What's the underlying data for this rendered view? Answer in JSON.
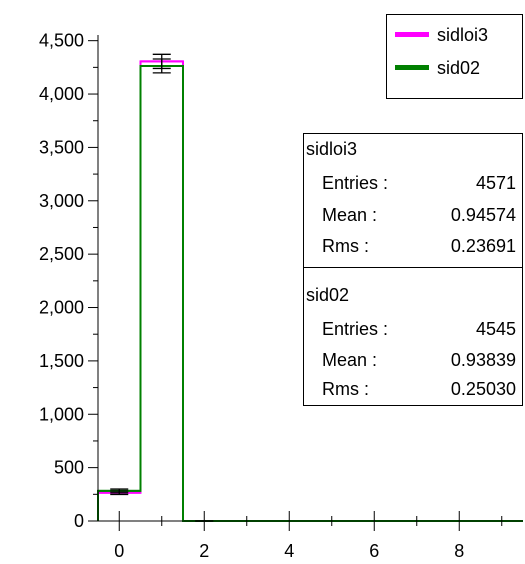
{
  "chart_data": {
    "type": "histogram",
    "bin_width": 1,
    "xlim": [
      -0.5,
      9.5
    ],
    "ylim": [
      0,
      4600
    ],
    "x_ticks": [
      0,
      2,
      4,
      6,
      8
    ],
    "y_ticks": [
      0,
      500,
      1000,
      1500,
      2000,
      2500,
      3000,
      3500,
      4000,
      4500
    ],
    "y_tick_labels": [
      "0",
      "500",
      "1,000",
      "1,500",
      "2,000",
      "2,500",
      "3,000",
      "3,500",
      "4,000",
      "4,500"
    ],
    "series": [
      {
        "name": "sidloi3",
        "color": "#ff00ff",
        "bins": [
          -0.5,
          0.5,
          1.5,
          2.5,
          9.5
        ],
        "values": [
          265,
          4306,
          0,
          0
        ],
        "errors": [
          16,
          66,
          0,
          0
        ],
        "stats": {
          "entries_label": "Entries :",
          "entries": "4571",
          "mean_label": "Mean :",
          "mean": "0.94574",
          "rms_label": "Rms :",
          "rms": "0.23691"
        }
      },
      {
        "name": "sid02",
        "color": "#008000",
        "bins": [
          -0.5,
          0.5,
          1.5,
          2.5,
          9.5
        ],
        "values": [
          282,
          4263,
          0,
          0
        ],
        "errors": [
          17,
          65,
          0,
          0
        ],
        "stats": {
          "entries_label": "Entries :",
          "entries": "4545",
          "mean_label": "Mean :",
          "mean": "0.93839",
          "rms_label": "Rms :",
          "rms": "0.25030"
        }
      }
    ]
  }
}
